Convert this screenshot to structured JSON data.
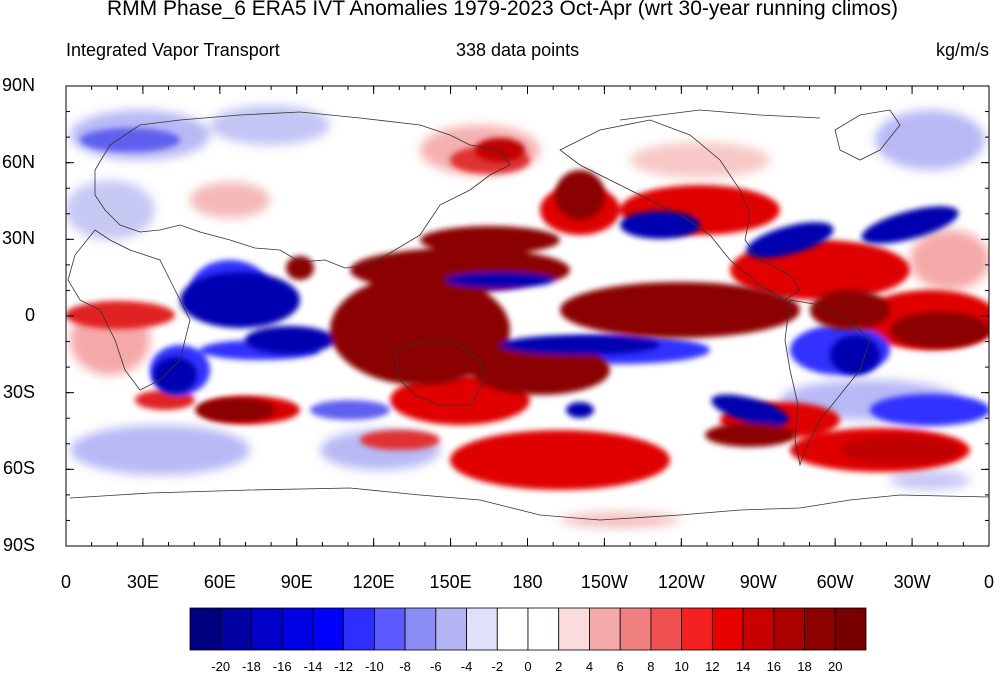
{
  "title": "RMM Phase_6 ERA5 IVT Anomalies 1979-2023 Oct-Apr (wrt 30-year running climos)",
  "subtitle_left": "Integrated Vapor Transport",
  "subtitle_center": "338 data points",
  "subtitle_right": "kg/m/s",
  "y_axis": {
    "labels": [
      "90N",
      "60N",
      "30N",
      "0",
      "30S",
      "60S",
      "90S"
    ]
  },
  "x_axis": {
    "labels": [
      "0",
      "30E",
      "60E",
      "90E",
      "120E",
      "150E",
      "180",
      "150W",
      "120W",
      "90W",
      "60W",
      "30W",
      "0"
    ]
  },
  "colorbar": {
    "labels": [
      "-20",
      "-18",
      "-16",
      "-14",
      "-12",
      "-10",
      "-8",
      "-6",
      "-4",
      "-2",
      "0",
      "2",
      "4",
      "6",
      "8",
      "10",
      "12",
      "14",
      "16",
      "18",
      "20"
    ],
    "colors": [
      "#000080",
      "#0000a3",
      "#0000c8",
      "#0000e6",
      "#0000ff",
      "#2e2eff",
      "#5a5aff",
      "#8c8cf5",
      "#b4b4f5",
      "#e0e0fa",
      "#ffffff",
      "#ffffff",
      "#fadcdc",
      "#f5aaaa",
      "#f08080",
      "#f05050",
      "#f52020",
      "#e60000",
      "#c80000",
      "#aa0000",
      "#8c0000",
      "#780000"
    ]
  },
  "map": {
    "projection": "cylindrical-equidistant",
    "field": "IVT anomaly",
    "colors": {
      "strong_positive": "#8b0000",
      "positive": "#e00000",
      "weak_positive": "#f5a0a0",
      "strong_negative": "#0000b0",
      "negative": "#3030ff",
      "weak_negative": "#c0c0f5",
      "coastline": "#333333"
    }
  }
}
